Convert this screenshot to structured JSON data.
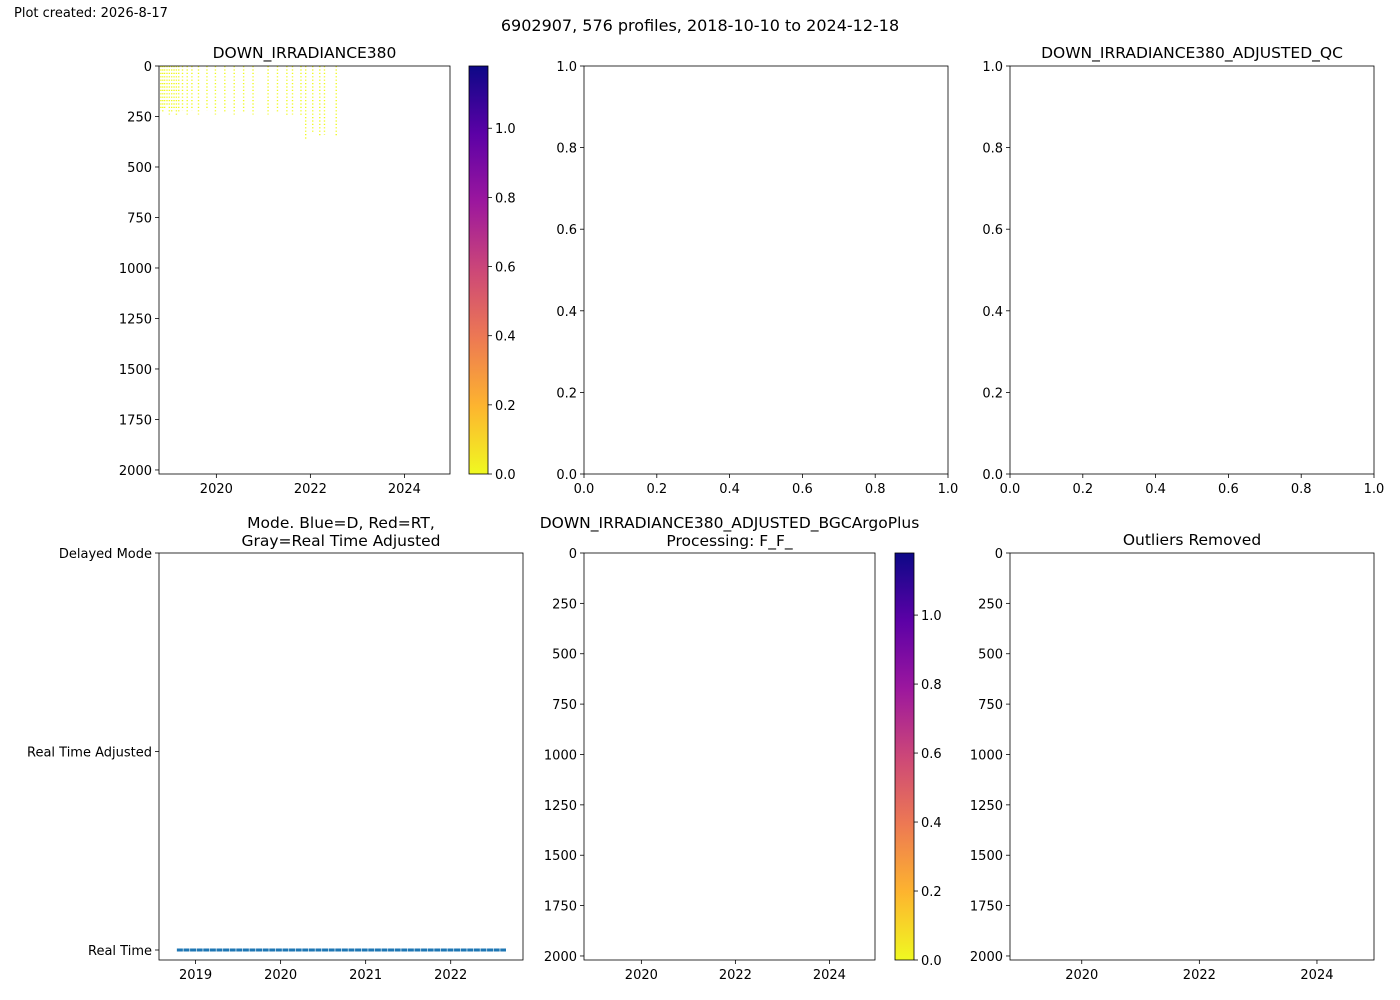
{
  "figure": {
    "created_label": "Plot created: 2026-8-17",
    "suptitle": "6902907, 576 profiles, 2018-10-10 to 2024-12-18"
  },
  "colors": {
    "plasma_r": [
      "#f0f921",
      "#fdb42f",
      "#ed7953",
      "#cc4778",
      "#9c179e",
      "#5c01a6",
      "#0d0887"
    ],
    "mode_line": "#1f77b4"
  },
  "chart_data": [
    {
      "id": "down_irradiance380",
      "type": "heatmap",
      "title": "DOWN_IRRADIANCE380",
      "xlim": [
        2018.78,
        2024.97
      ],
      "x_ticks": [
        2020,
        2022,
        2024
      ],
      "ylim": [
        2020,
        0
      ],
      "y_ticks": [
        0,
        250,
        500,
        750,
        1000,
        1250,
        1500,
        1750,
        2000
      ],
      "colorbar": {
        "range": [
          0,
          1.18
        ],
        "ticks": [
          0.0,
          0.2,
          0.4,
          0.6,
          0.8,
          1.0
        ],
        "colormap": "plasma_r"
      },
      "note_values": "all visible values near 0 (yellow)",
      "profiles": [
        {
          "x": 2018.82,
          "max_depth": 220
        },
        {
          "x": 2018.86,
          "max_depth": 230
        },
        {
          "x": 2018.9,
          "max_depth": 210
        },
        {
          "x": 2018.95,
          "max_depth": 200
        },
        {
          "x": 2019.0,
          "max_depth": 240
        },
        {
          "x": 2019.05,
          "max_depth": 230
        },
        {
          "x": 2019.1,
          "max_depth": 220
        },
        {
          "x": 2019.15,
          "max_depth": 250
        },
        {
          "x": 2019.2,
          "max_depth": 230
        },
        {
          "x": 2019.28,
          "max_depth": 220
        },
        {
          "x": 2019.38,
          "max_depth": 240
        },
        {
          "x": 2019.48,
          "max_depth": 220
        },
        {
          "x": 2019.62,
          "max_depth": 240
        },
        {
          "x": 2019.8,
          "max_depth": 220
        },
        {
          "x": 2019.98,
          "max_depth": 240
        },
        {
          "x": 2020.18,
          "max_depth": 230
        },
        {
          "x": 2020.38,
          "max_depth": 240
        },
        {
          "x": 2020.58,
          "max_depth": 230
        },
        {
          "x": 2020.78,
          "max_depth": 240
        },
        {
          "x": 2021.1,
          "max_depth": 240
        },
        {
          "x": 2021.3,
          "max_depth": 230
        },
        {
          "x": 2021.5,
          "max_depth": 250
        },
        {
          "x": 2021.62,
          "max_depth": 240
        },
        {
          "x": 2021.8,
          "max_depth": 250
        },
        {
          "x": 2021.9,
          "max_depth": 360
        },
        {
          "x": 2022.05,
          "max_depth": 330
        },
        {
          "x": 2022.2,
          "max_depth": 350
        },
        {
          "x": 2022.3,
          "max_depth": 340
        },
        {
          "x": 2022.55,
          "max_depth": 350
        }
      ]
    },
    {
      "id": "empty_middle_top",
      "type": "scatter",
      "title": "",
      "xlim": [
        0,
        1
      ],
      "x_ticks": [
        0.0,
        0.2,
        0.4,
        0.6,
        0.8,
        1.0
      ],
      "ylim": [
        0,
        1
      ],
      "y_ticks": [
        0.0,
        0.2,
        0.4,
        0.6,
        0.8,
        1.0
      ]
    },
    {
      "id": "adjusted_qc",
      "type": "scatter",
      "title": "DOWN_IRRADIANCE380_ADJUSTED_QC",
      "xlim": [
        0,
        1
      ],
      "x_ticks": [
        0.0,
        0.2,
        0.4,
        0.6,
        0.8,
        1.0
      ],
      "ylim": [
        0,
        1
      ],
      "y_ticks": [
        0.0,
        0.2,
        0.4,
        0.6,
        0.8,
        1.0
      ]
    },
    {
      "id": "mode",
      "type": "line",
      "title_lines": [
        "Mode. Blue=D, Red=RT,",
        "Gray=Real Time Adjusted"
      ],
      "xlim": [
        2018.57,
        2022.85
      ],
      "x_ticks": [
        2019,
        2020,
        2021,
        2022
      ],
      "y_categories": [
        "Real Time",
        "Real Time Adjusted",
        "Delayed Mode"
      ],
      "series": [
        {
          "x_start": 2018.78,
          "x_end": 2022.65,
          "level": "Real Time"
        }
      ]
    },
    {
      "id": "bgcargoplus",
      "type": "heatmap",
      "title_lines": [
        "DOWN_IRRADIANCE380_ADJUSTED_BGCArgoPlus",
        "Processing: F_F_"
      ],
      "xlim": [
        2018.78,
        2024.97
      ],
      "x_ticks": [
        2020,
        2022,
        2024
      ],
      "ylim": [
        2020,
        0
      ],
      "y_ticks": [
        0,
        250,
        500,
        750,
        1000,
        1250,
        1500,
        1750,
        2000
      ],
      "colorbar": {
        "range": [
          0,
          1.18
        ],
        "ticks": [
          0.0,
          0.2,
          0.4,
          0.6,
          0.8,
          1.0
        ],
        "colormap": "plasma_r"
      }
    },
    {
      "id": "outliers_removed",
      "type": "heatmap",
      "title": "Outliers Removed",
      "xlim": [
        2018.78,
        2024.97
      ],
      "x_ticks": [
        2020,
        2022,
        2024
      ],
      "ylim": [
        2020,
        0
      ],
      "y_ticks": [
        0,
        250,
        500,
        750,
        1000,
        1250,
        1500,
        1750,
        2000
      ]
    }
  ]
}
